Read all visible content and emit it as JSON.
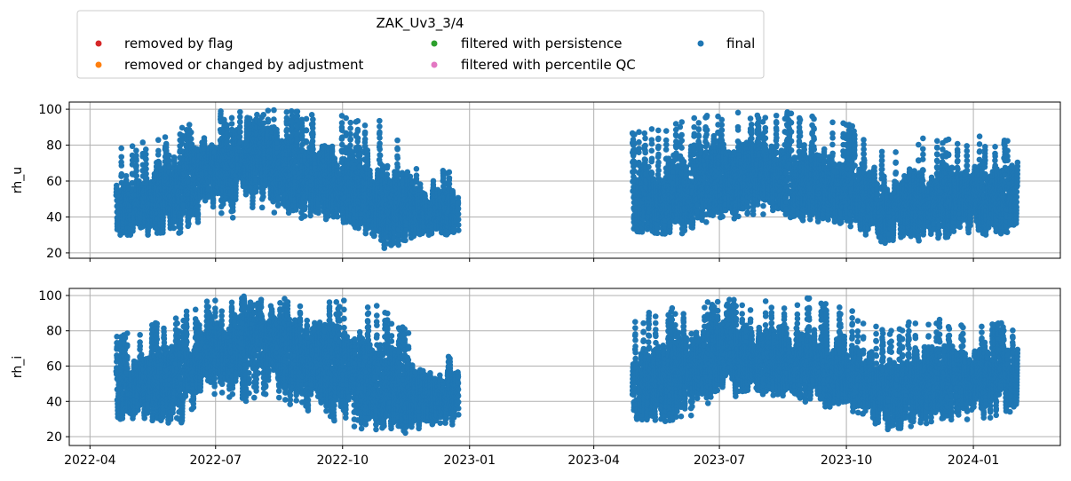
{
  "chart_data": {
    "type": "scatter",
    "legend": {
      "title": "ZAK_Uv3_3/4",
      "placement": "top-left, above plots",
      "entries": [
        {
          "label": "removed by flag",
          "color": "#d62728"
        },
        {
          "label": "removed or changed by adjustment",
          "color": "#ff7f0e"
        },
        {
          "label": "filtered with persistence",
          "color": "#2ca02c"
        },
        {
          "label": "filtered with percentile QC",
          "color": "#e377c2"
        },
        {
          "label": "final",
          "color": "#1f77b4"
        }
      ]
    },
    "x_axis": {
      "type": "date",
      "range": [
        "2022-03-17",
        "2024-03-04"
      ],
      "ticks": [
        "2022-04-01",
        "2022-07-01",
        "2022-10-01",
        "2023-01-01",
        "2023-04-01",
        "2023-07-01",
        "2023-10-01",
        "2024-01-01"
      ],
      "tick_labels": [
        "2022-04",
        "2022-07",
        "2022-10",
        "2023-01",
        "2023-04",
        "2023-07",
        "2023-10",
        "2024-01"
      ]
    },
    "grid": true,
    "series_color": "#1f77b4",
    "panels": [
      {
        "ylabel": "rh_u",
        "ylim": [
          17,
          104
        ],
        "yticks": [
          20,
          40,
          60,
          80,
          100
        ],
        "segments": [
          {
            "start": "2022-04-20",
            "end": "2022-12-24"
          },
          {
            "start": "2023-04-29",
            "end": "2024-02-02"
          }
        ],
        "envelope_monthly": [
          {
            "date": "2022-05-01",
            "mid": 45,
            "min": 30,
            "max": 80
          },
          {
            "date": "2022-06-01",
            "mid": 55,
            "min": 28,
            "max": 88
          },
          {
            "date": "2022-07-01",
            "mid": 68,
            "min": 38,
            "max": 99
          },
          {
            "date": "2022-08-01",
            "mid": 74,
            "min": 40,
            "max": 100
          },
          {
            "date": "2022-09-01",
            "mid": 62,
            "min": 35,
            "max": 99
          },
          {
            "date": "2022-10-01",
            "mid": 58,
            "min": 36,
            "max": 98
          },
          {
            "date": "2022-11-01",
            "mid": 50,
            "min": 21,
            "max": 94
          },
          {
            "date": "2022-12-01",
            "mid": 42,
            "min": 30,
            "max": 65
          },
          {
            "date": "2023-05-01",
            "mid": 48,
            "min": 32,
            "max": 88
          },
          {
            "date": "2023-06-01",
            "mid": 52,
            "min": 30,
            "max": 95
          },
          {
            "date": "2023-07-01",
            "mid": 64,
            "min": 38,
            "max": 99
          },
          {
            "date": "2023-08-01",
            "mid": 62,
            "min": 40,
            "max": 97
          },
          {
            "date": "2023-09-01",
            "mid": 58,
            "min": 38,
            "max": 100
          },
          {
            "date": "2023-10-01",
            "mid": 55,
            "min": 36,
            "max": 93
          },
          {
            "date": "2023-11-01",
            "mid": 44,
            "min": 23,
            "max": 80
          },
          {
            "date": "2023-12-01",
            "mid": 48,
            "min": 28,
            "max": 88
          },
          {
            "date": "2024-01-01",
            "mid": 52,
            "min": 30,
            "max": 85
          }
        ]
      },
      {
        "ylabel": "rh_i",
        "ylim": [
          15,
          104
        ],
        "yticks": [
          20,
          40,
          60,
          80,
          100
        ],
        "segments": [
          {
            "start": "2022-04-20",
            "end": "2022-12-24"
          },
          {
            "start": "2023-04-29",
            "end": "2024-02-02"
          }
        ],
        "envelope_monthly": [
          {
            "date": "2022-05-01",
            "mid": 46,
            "min": 30,
            "max": 80
          },
          {
            "date": "2022-06-01",
            "mid": 56,
            "min": 24,
            "max": 89
          },
          {
            "date": "2022-07-01",
            "mid": 70,
            "min": 40,
            "max": 99
          },
          {
            "date": "2022-08-01",
            "mid": 75,
            "min": 40,
            "max": 100
          },
          {
            "date": "2022-09-01",
            "mid": 64,
            "min": 36,
            "max": 99
          },
          {
            "date": "2022-10-01",
            "mid": 60,
            "min": 27,
            "max": 98
          },
          {
            "date": "2022-11-01",
            "mid": 48,
            "min": 19,
            "max": 94
          },
          {
            "date": "2022-12-01",
            "mid": 42,
            "min": 25,
            "max": 67
          },
          {
            "date": "2023-05-01",
            "mid": 48,
            "min": 30,
            "max": 88
          },
          {
            "date": "2023-06-01",
            "mid": 54,
            "min": 28,
            "max": 95
          },
          {
            "date": "2023-07-01",
            "mid": 66,
            "min": 40,
            "max": 99
          },
          {
            "date": "2023-08-01",
            "mid": 64,
            "min": 42,
            "max": 97
          },
          {
            "date": "2023-09-01",
            "mid": 60,
            "min": 38,
            "max": 100
          },
          {
            "date": "2023-10-01",
            "mid": 56,
            "min": 36,
            "max": 93
          },
          {
            "date": "2023-11-01",
            "mid": 44,
            "min": 21,
            "max": 82
          },
          {
            "date": "2023-12-01",
            "mid": 50,
            "min": 28,
            "max": 88
          },
          {
            "date": "2024-01-01",
            "mid": 54,
            "min": 30,
            "max": 85
          }
        ]
      }
    ]
  }
}
